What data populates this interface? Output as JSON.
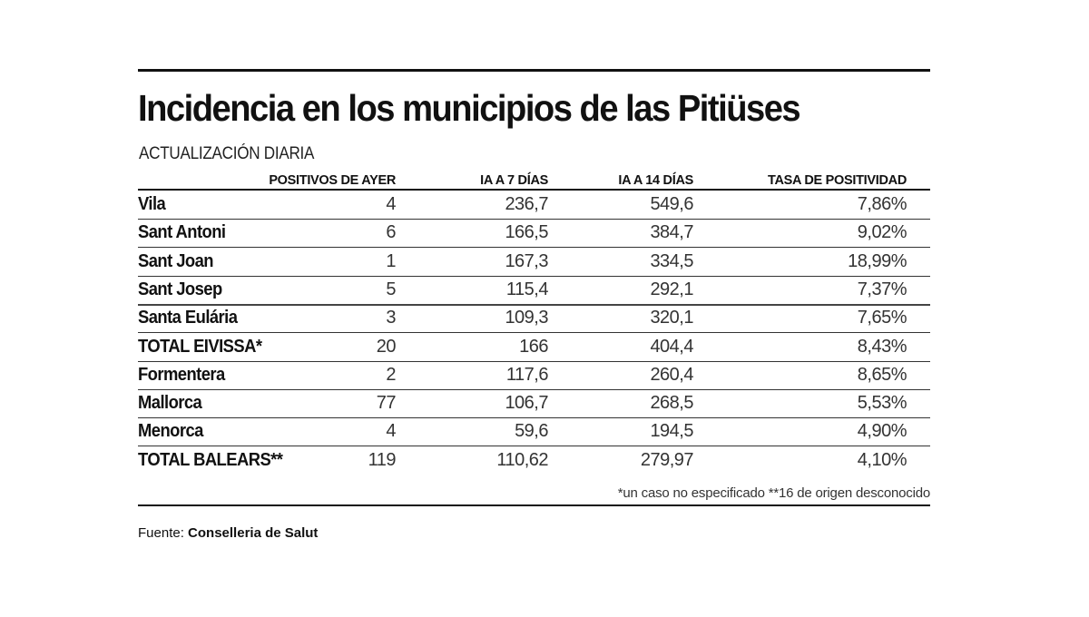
{
  "title": "Incidencia en los municipios de las Pitiüses",
  "subtitle": "ACTUALIZACIÓN DIARIA",
  "chart_data": {
    "type": "table",
    "columns": [
      "POSITIVOS DE AYER",
      "IA A 7 DÍAS",
      "IA A 14 DÍAS",
      "TASA DE POSITIVIDAD"
    ],
    "rows": [
      {
        "name": "Vila",
        "values": [
          "4",
          "236,7",
          "549,6",
          "7,86%"
        ]
      },
      {
        "name": "Sant Antoni",
        "values": [
          "6",
          "166,5",
          "384,7",
          "9,02%"
        ]
      },
      {
        "name": "Sant Joan",
        "values": [
          "1",
          "167,3",
          "334,5",
          "18,99%"
        ]
      },
      {
        "name": "Sant Josep",
        "values": [
          "5",
          "115,4",
          "292,1",
          "7,37%"
        ]
      },
      {
        "name": "Santa Eulária",
        "values": [
          "3",
          "109,3",
          "320,1",
          "7,65%"
        ]
      },
      {
        "name": "TOTAL EIVISSA*",
        "values": [
          "20",
          "166",
          "404,4",
          "8,43%"
        ]
      },
      {
        "name": "Formentera",
        "values": [
          "2",
          "117,6",
          "260,4",
          "8,65%"
        ]
      },
      {
        "name": "Mallorca",
        "values": [
          "77",
          "106,7",
          "268,5",
          "5,53%"
        ]
      },
      {
        "name": "Menorca",
        "values": [
          "4",
          "59,6",
          "194,5",
          "4,90%"
        ]
      },
      {
        "name": "TOTAL BALEARS**",
        "values": [
          "119",
          "110,62",
          "279,97",
          "4,10%"
        ]
      }
    ]
  },
  "footnote": "*un caso no especificado **16 de origen desconocido",
  "source": {
    "label": "Fuente:",
    "value": "Conselleria de Salut"
  }
}
